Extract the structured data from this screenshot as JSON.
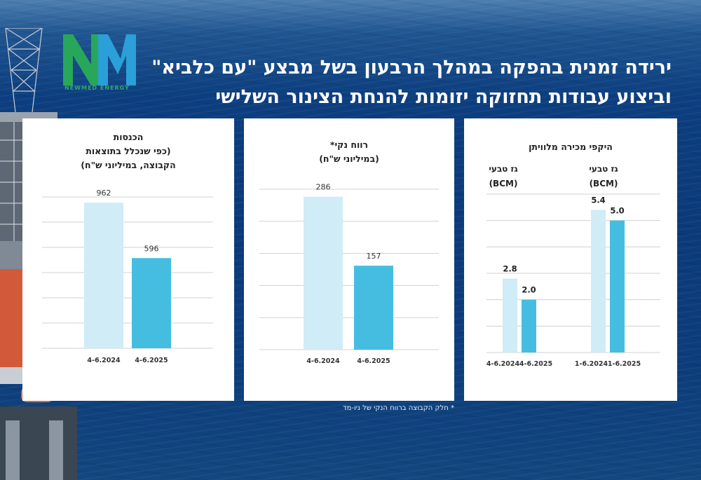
{
  "headline": {
    "line1": "ירידה זמנית בהפקה במהלך הרבעון בשל מבצע \"עם כלביא\"",
    "line2": "וביצוע עבודות תחזוקה יזומות להנחת הצינור השלישי"
  },
  "logo": {
    "text": "NEWMED ENERGY",
    "icon": "newmed-logo"
  },
  "footnote": "* חלק הקבוצה ברווח הנקי של ניו-מד",
  "colors": {
    "light_bar": "#cfecf7",
    "dark_bar": "#45bde0",
    "grid": "#d0d0d0"
  },
  "chart_data": [
    {
      "type": "bar",
      "title_lines": [
        "הכנסות",
        "(כפי שנכלל בתוצאות",
        "הקבוצה, במיליוני ש\"ח)"
      ],
      "categories": [
        "4-6.2024",
        "4-6.2025"
      ],
      "values": [
        962,
        596
      ],
      "ylim": [
        0,
        1000
      ],
      "grid": true
    },
    {
      "type": "bar",
      "title_lines": [
        "רווח נקי*",
        "(במיליוני ש\"ח)"
      ],
      "categories": [
        "4-6.2024",
        "4-6.2025"
      ],
      "values": [
        286,
        157
      ],
      "ylim": [
        0,
        300
      ],
      "grid": true
    },
    {
      "type": "bar",
      "title_lines": [
        "היקפי מכירה מלוויתן"
      ],
      "groups": [
        {
          "label_lines": [
            "גז טבעי",
            "(BCM)"
          ],
          "categories": [
            "4-6.2024",
            "4-6.2025"
          ],
          "values": [
            2.8,
            2.0
          ]
        },
        {
          "label_lines": [
            "גז טבעי",
            "(BCM)"
          ],
          "categories": [
            "1-6.2024",
            "1-6.2025"
          ],
          "values": [
            5.4,
            5.0
          ]
        }
      ],
      "ylim": [
        0,
        6
      ],
      "grid": true
    }
  ]
}
